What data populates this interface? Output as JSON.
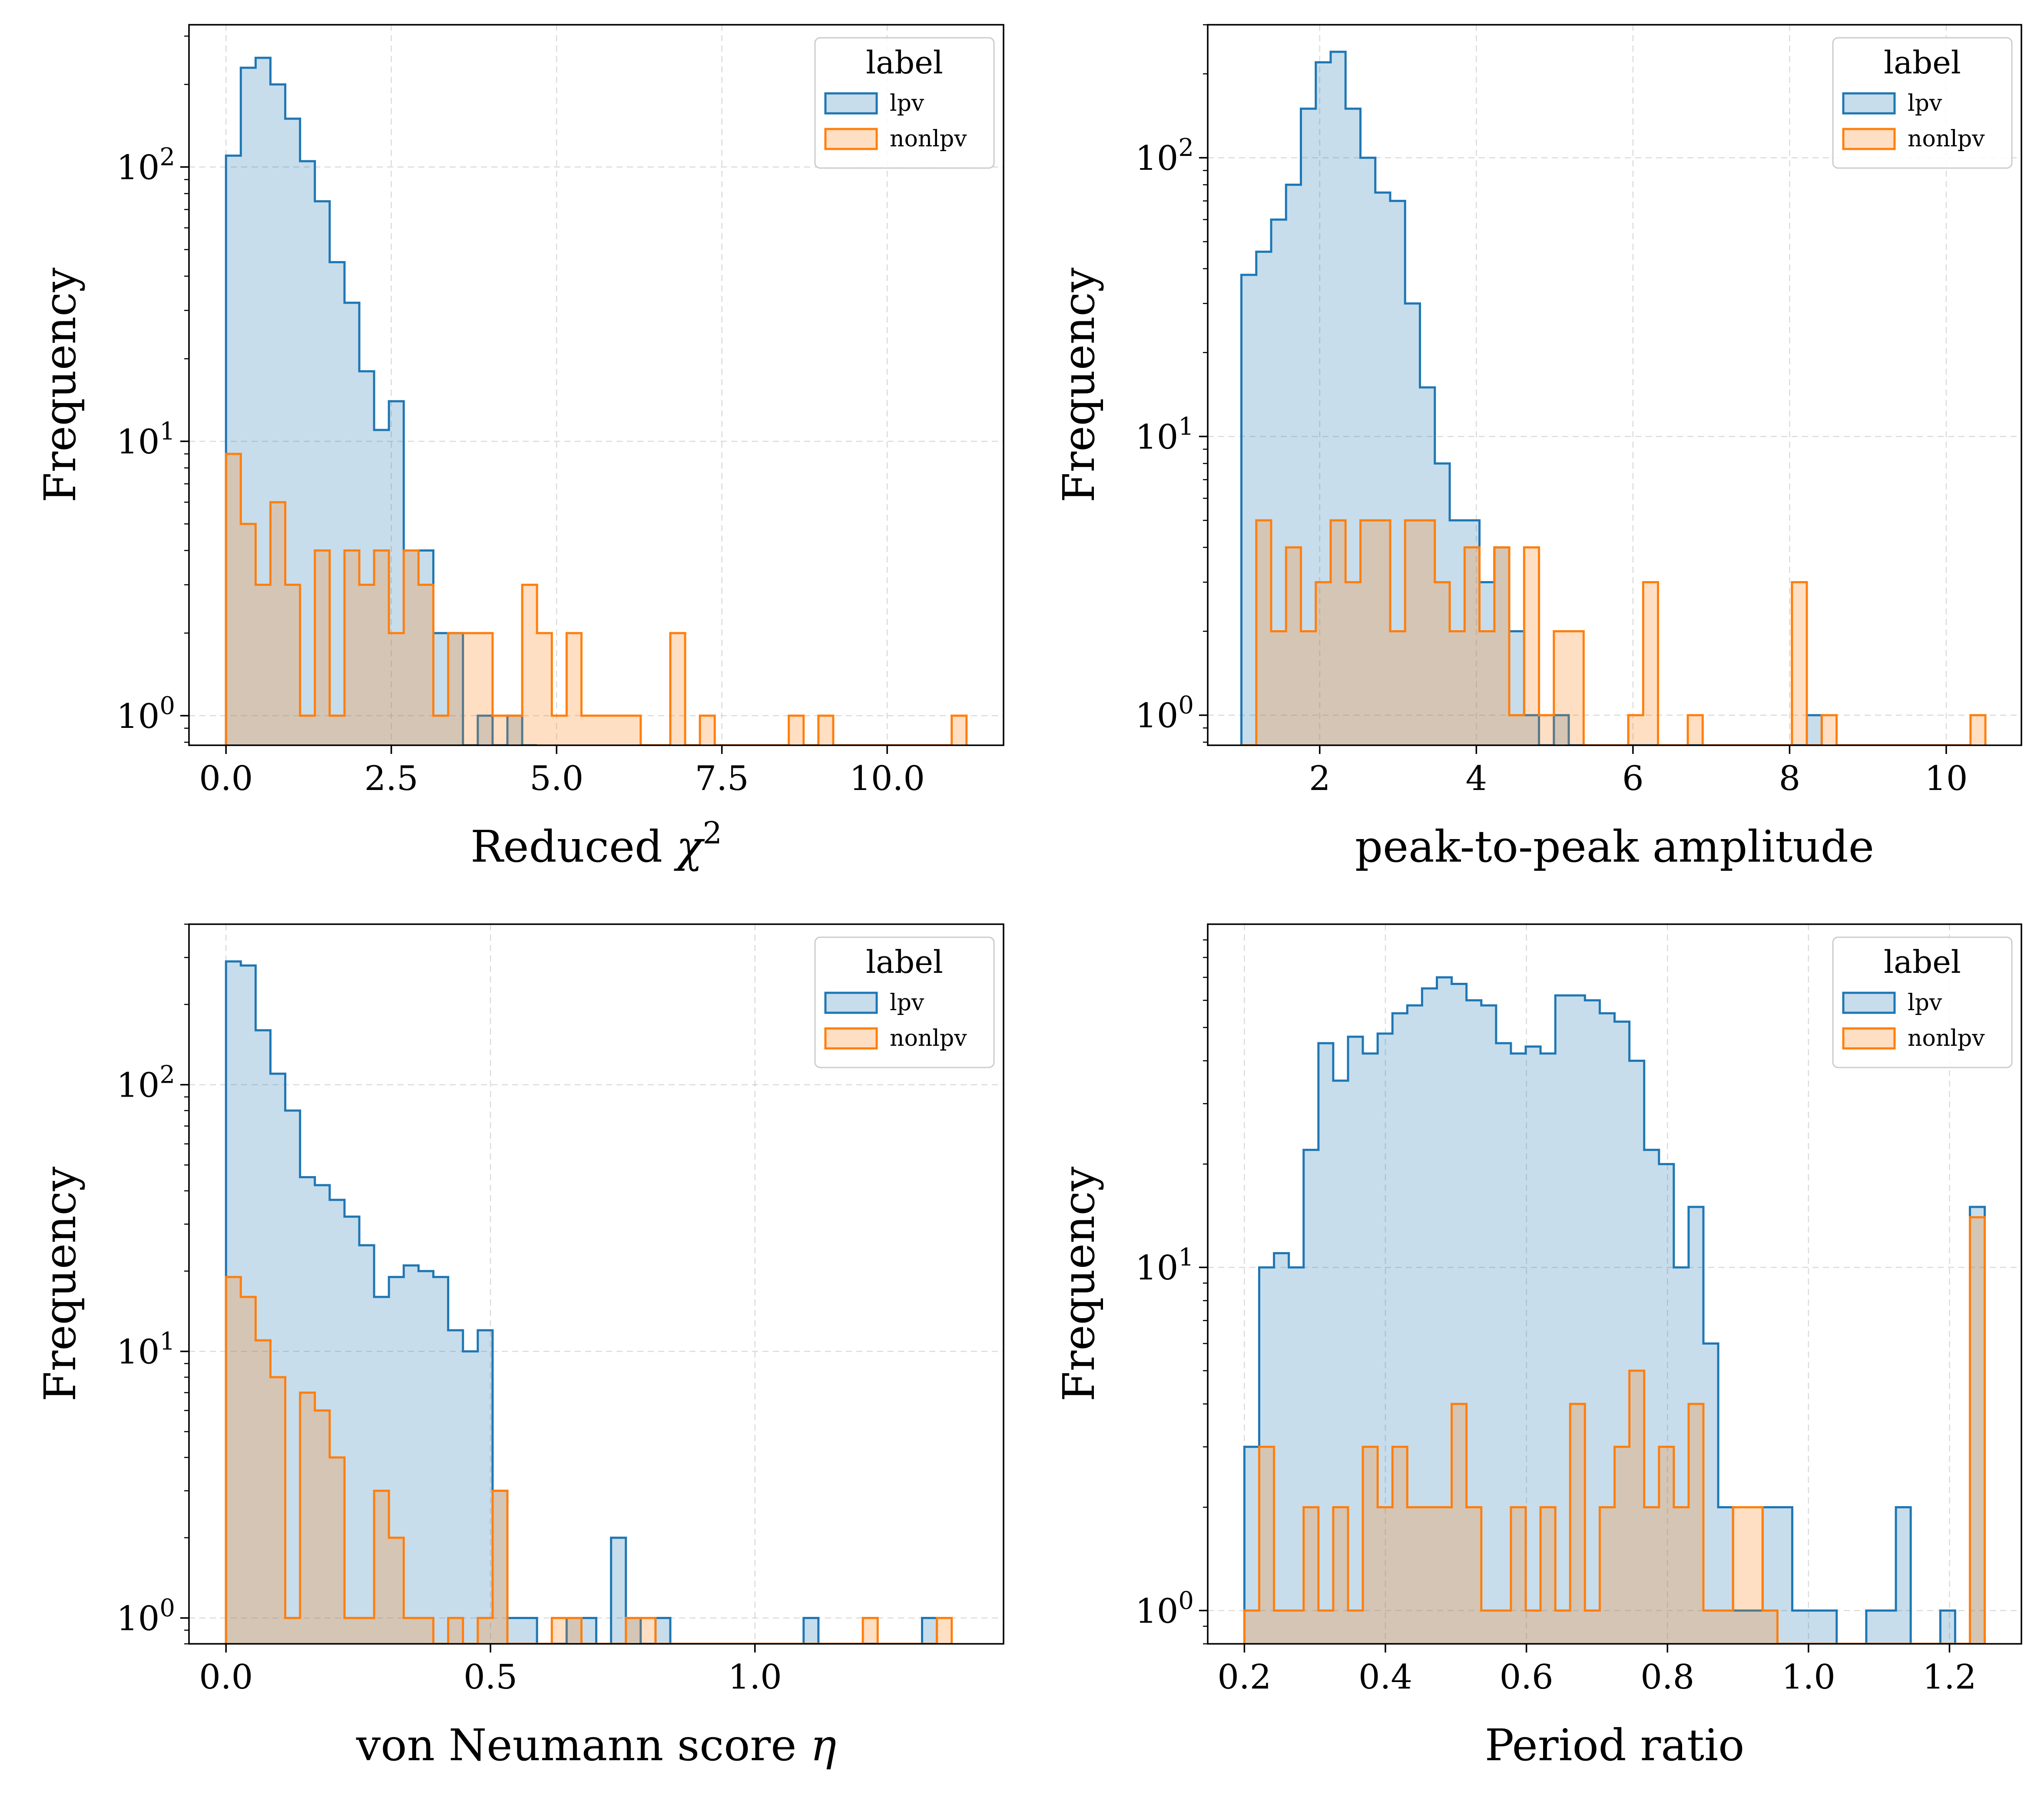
{
  "colors": {
    "lpv": "#1f77b4",
    "nonlpv": "#ff7f0e"
  },
  "chart_data": [
    {
      "type": "histogram",
      "xlabel": "Reduced χ²",
      "xlabel_sup": "2",
      "xlabel_base": "Reduced χ",
      "ylabel": "Frequency",
      "yscale": "log",
      "grid": true,
      "legend": {
        "title": "label",
        "placement": "top-right",
        "entries": [
          "lpv",
          "nonlpv"
        ]
      },
      "xlim": [
        -0.56,
        11.76
      ],
      "ylim": [
        0.78,
        330
      ],
      "xticks": [
        0.0,
        2.5,
        5.0,
        7.5,
        10.0
      ],
      "xtick_labels": [
        "0.0",
        "2.5",
        "5.0",
        "7.5",
        "10.0"
      ],
      "yticks": [
        1,
        10,
        100
      ],
      "ytick_labels": [
        "10⁰",
        "10¹",
        "10²"
      ],
      "series": [
        {
          "name": "lpv",
          "bin_edges": [
            0.0,
            0.224,
            0.448,
            0.672,
            0.896,
            1.12,
            1.344,
            1.568,
            1.792,
            2.016,
            2.24,
            2.464,
            2.688,
            2.912,
            3.136,
            3.36,
            3.584,
            3.808,
            4.032,
            4.256,
            4.48,
            4.704
          ],
          "counts": [
            110,
            230,
            250,
            200,
            150,
            105,
            75,
            45,
            32,
            18,
            11,
            14,
            4,
            4,
            2,
            2,
            0,
            1,
            0,
            1,
            0
          ]
        },
        {
          "name": "nonlpv",
          "bin_edges": [
            0.0,
            0.224,
            0.448,
            0.672,
            0.896,
            1.12,
            1.344,
            1.568,
            1.792,
            2.016,
            2.24,
            2.464,
            2.688,
            2.912,
            3.136,
            3.36,
            3.584,
            3.808,
            4.032,
            4.256,
            4.48,
            4.704,
            4.928,
            5.152,
            5.376,
            5.6,
            5.824,
            6.048,
            6.272,
            6.496,
            6.72,
            6.944,
            7.168,
            7.392,
            7.616,
            7.84,
            8.064,
            8.288,
            8.512,
            8.736,
            8.96,
            9.184,
            9.408,
            9.632,
            9.856,
            10.08,
            10.304,
            10.528,
            10.752,
            10.976,
            11.2
          ],
          "counts": [
            9,
            5,
            3,
            6,
            3,
            1,
            4,
            1,
            4,
            3,
            4,
            2,
            4,
            3,
            1,
            2,
            2,
            2,
            1,
            1,
            3,
            2,
            1,
            2,
            1,
            1,
            1,
            1,
            0,
            0,
            2,
            0,
            1,
            0,
            0,
            0,
            0,
            0,
            1,
            0,
            1,
            0,
            0,
            0,
            0,
            0,
            0,
            0,
            0,
            1
          ]
        }
      ]
    },
    {
      "type": "histogram",
      "xlabel": "peak-to-peak amplitude",
      "ylabel": "Frequency",
      "yscale": "log",
      "grid": true,
      "legend": {
        "title": "label",
        "placement": "top-right",
        "entries": [
          "lpv",
          "nonlpv"
        ]
      },
      "xlim": [
        0.57,
        10.96
      ],
      "ylim": [
        0.78,
        300
      ],
      "xticks": [
        2,
        4,
        6,
        8,
        10
      ],
      "xtick_labels": [
        "2",
        "4",
        "6",
        "8",
        "10"
      ],
      "yticks": [
        1,
        10,
        100
      ],
      "ytick_labels": [
        "10⁰",
        "10¹",
        "10²"
      ],
      "series": [
        {
          "name": "lpv",
          "bin_edges": [
            1.0,
            1.19,
            1.38,
            1.57,
            1.76,
            1.95,
            2.14,
            2.33,
            2.52,
            2.71,
            2.9,
            3.09,
            3.28,
            3.47,
            3.66,
            3.85,
            4.04,
            4.23,
            4.42,
            4.61,
            4.8,
            4.99,
            5.18,
            5.37,
            5.56,
            5.75,
            5.94,
            6.13,
            6.32,
            6.51,
            6.7,
            6.89,
            7.08,
            7.27,
            7.46,
            7.65,
            7.84,
            8.03,
            8.22,
            8.41
          ],
          "counts": [
            38,
            46,
            60,
            80,
            150,
            220,
            240,
            150,
            100,
            75,
            70,
            30,
            15,
            8,
            5,
            5,
            3,
            4,
            2,
            1,
            0,
            1,
            0,
            0,
            0,
            0,
            0,
            0,
            0,
            0,
            0,
            0,
            0,
            0,
            0,
            0,
            0,
            0,
            1
          ]
        },
        {
          "name": "nonlpv",
          "bin_edges": [
            1.0,
            1.19,
            1.38,
            1.57,
            1.76,
            1.95,
            2.14,
            2.33,
            2.52,
            2.71,
            2.9,
            3.09,
            3.28,
            3.47,
            3.66,
            3.85,
            4.04,
            4.23,
            4.42,
            4.61,
            4.8,
            4.99,
            5.18,
            5.37,
            5.56,
            5.75,
            5.94,
            6.13,
            6.32,
            6.51,
            6.7,
            6.89,
            7.08,
            7.27,
            7.46,
            7.65,
            7.84,
            8.03,
            8.22,
            8.41,
            8.6,
            8.79,
            8.98,
            9.17,
            9.36,
            9.55,
            9.74,
            9.93,
            10.12,
            10.31,
            10.5
          ],
          "counts": [
            0,
            5,
            2,
            4,
            2,
            3,
            5,
            3,
            5,
            5,
            2,
            5,
            5,
            3,
            2,
            4,
            2,
            4,
            1,
            4,
            1,
            2,
            2,
            0,
            0,
            0,
            1,
            3,
            0,
            0,
            1,
            0,
            0,
            0,
            0,
            0,
            0,
            3,
            0,
            1,
            0,
            0,
            0,
            0,
            0,
            0,
            0,
            0,
            0,
            1
          ]
        }
      ]
    },
    {
      "type": "histogram",
      "xlabel": "von Neumann score η",
      "xlabel_base": "von Neumann score ",
      "xlabel_symbol": "η",
      "ylabel": "Frequency",
      "yscale": "log",
      "grid": true,
      "legend": {
        "title": "label",
        "placement": "top-right",
        "entries": [
          "lpv",
          "nonlpv"
        ]
      },
      "xlim": [
        -0.07,
        1.47
      ],
      "ylim": [
        0.8,
        400
      ],
      "xticks": [
        0.0,
        0.5,
        1.0
      ],
      "xtick_labels": [
        "0.0",
        "0.5",
        "1.0"
      ],
      "yticks": [
        1,
        10,
        100
      ],
      "ytick_labels": [
        "10⁰",
        "10¹",
        "10²"
      ],
      "series": [
        {
          "name": "lpv",
          "bin_edges": [
            0.0,
            0.028,
            0.056,
            0.084,
            0.112,
            0.14,
            0.168,
            0.196,
            0.224,
            0.252,
            0.28,
            0.308,
            0.336,
            0.364,
            0.392,
            0.42,
            0.448,
            0.476,
            0.504,
            0.532,
            0.56,
            0.588,
            0.616,
            0.644,
            0.672,
            0.7,
            0.728,
            0.756,
            0.784,
            0.812,
            0.84,
            0.868,
            0.896,
            0.924,
            0.952,
            0.98,
            1.008,
            1.036,
            1.064,
            1.092,
            1.12,
            1.148,
            1.176,
            1.204,
            1.232,
            1.26,
            1.288,
            1.316,
            1.344
          ],
          "counts": [
            290,
            280,
            160,
            110,
            80,
            45,
            42,
            37,
            32,
            25,
            16,
            19,
            21,
            20,
            19,
            12,
            10,
            12,
            3,
            1,
            1,
            0,
            0,
            1,
            1,
            0,
            2,
            1,
            0,
            1,
            0,
            0,
            0,
            0,
            0,
            0,
            0,
            0,
            0,
            1,
            0,
            0,
            0,
            0,
            0,
            0,
            0,
            1
          ]
        },
        {
          "name": "nonlpv",
          "bin_edges": [
            0.0,
            0.028,
            0.056,
            0.084,
            0.112,
            0.14,
            0.168,
            0.196,
            0.224,
            0.252,
            0.28,
            0.308,
            0.336,
            0.364,
            0.392,
            0.42,
            0.448,
            0.476,
            0.504,
            0.532,
            0.56,
            0.588,
            0.616,
            0.644,
            0.672,
            0.7,
            0.728,
            0.756,
            0.784,
            0.812,
            0.84,
            0.868,
            0.896,
            0.924,
            0.952,
            0.98,
            1.008,
            1.036,
            1.064,
            1.092,
            1.12,
            1.148,
            1.176,
            1.204,
            1.232,
            1.26,
            1.288,
            1.316,
            1.344,
            1.372
          ],
          "counts": [
            19,
            16,
            11,
            8,
            1,
            7,
            6,
            4,
            1,
            1,
            3,
            2,
            1,
            1,
            0,
            1,
            0,
            1,
            3,
            0,
            0,
            0,
            1,
            1,
            0,
            0,
            0,
            1,
            1,
            0,
            0,
            0,
            0,
            0,
            0,
            0,
            0,
            0,
            0,
            0,
            0,
            0,
            0,
            1,
            0,
            0,
            0,
            0,
            1
          ]
        }
      ]
    },
    {
      "type": "histogram",
      "xlabel": "Period ratio",
      "ylabel": "Frequency",
      "yscale": "log",
      "grid": true,
      "legend": {
        "title": "label",
        "placement": "top-right",
        "entries": [
          "lpv",
          "nonlpv"
        ]
      },
      "xlim": [
        0.148,
        1.302
      ],
      "ylim": [
        0.8,
        100
      ],
      "xticks": [
        0.2,
        0.4,
        0.6,
        0.8,
        1.0,
        1.2
      ],
      "xtick_labels": [
        "0.2",
        "0.4",
        "0.6",
        "0.8",
        "1.0",
        "1.2"
      ],
      "yticks": [
        1,
        10
      ],
      "ytick_labels": [
        "10⁰",
        "10¹"
      ],
      "series": [
        {
          "name": "lpv",
          "bin_edges": [
            0.2,
            0.221,
            0.242,
            0.263,
            0.284,
            0.305,
            0.326,
            0.347,
            0.368,
            0.389,
            0.41,
            0.431,
            0.452,
            0.473,
            0.494,
            0.515,
            0.536,
            0.557,
            0.578,
            0.599,
            0.62,
            0.641,
            0.662,
            0.683,
            0.704,
            0.725,
            0.746,
            0.767,
            0.788,
            0.809,
            0.83,
            0.851,
            0.872,
            0.893,
            0.914,
            0.935,
            0.956,
            0.977,
            0.998,
            1.019,
            1.04,
            1.061,
            1.082,
            1.103,
            1.124,
            1.145,
            1.166,
            1.187,
            1.208,
            1.229,
            1.25
          ],
          "counts": [
            3,
            10,
            11,
            10,
            22,
            45,
            35,
            47,
            42,
            48,
            55,
            58,
            65,
            70,
            67,
            60,
            58,
            45,
            42,
            44,
            42,
            62,
            62,
            60,
            55,
            52,
            40,
            22,
            20,
            10,
            15,
            6,
            2,
            1,
            1,
            2,
            2,
            1,
            1,
            1,
            0,
            0,
            1,
            1,
            2,
            0,
            0,
            1,
            0,
            15
          ]
        },
        {
          "name": "nonlpv",
          "bin_edges": [
            0.2,
            0.221,
            0.242,
            0.263,
            0.284,
            0.305,
            0.326,
            0.347,
            0.368,
            0.389,
            0.41,
            0.431,
            0.452,
            0.473,
            0.494,
            0.515,
            0.536,
            0.557,
            0.578,
            0.599,
            0.62,
            0.641,
            0.662,
            0.683,
            0.704,
            0.725,
            0.746,
            0.767,
            0.788,
            0.809,
            0.83,
            0.851,
            0.872,
            0.893,
            0.914,
            0.935,
            0.956,
            0.977,
            0.998,
            1.019,
            1.04,
            1.061,
            1.082,
            1.103,
            1.124,
            1.145,
            1.166,
            1.187,
            1.208,
            1.229,
            1.25
          ],
          "counts": [
            1,
            3,
            1,
            1,
            2,
            1,
            2,
            1,
            3,
            2,
            3,
            2,
            2,
            2,
            4,
            2,
            1,
            1,
            2,
            1,
            2,
            1,
            4,
            1,
            2,
            3,
            5,
            2,
            3,
            2,
            4,
            1,
            1,
            2,
            2,
            1,
            0,
            0,
            0,
            0,
            0,
            0,
            0,
            0,
            0,
            0,
            0,
            0,
            0,
            14
          ]
        }
      ]
    }
  ]
}
